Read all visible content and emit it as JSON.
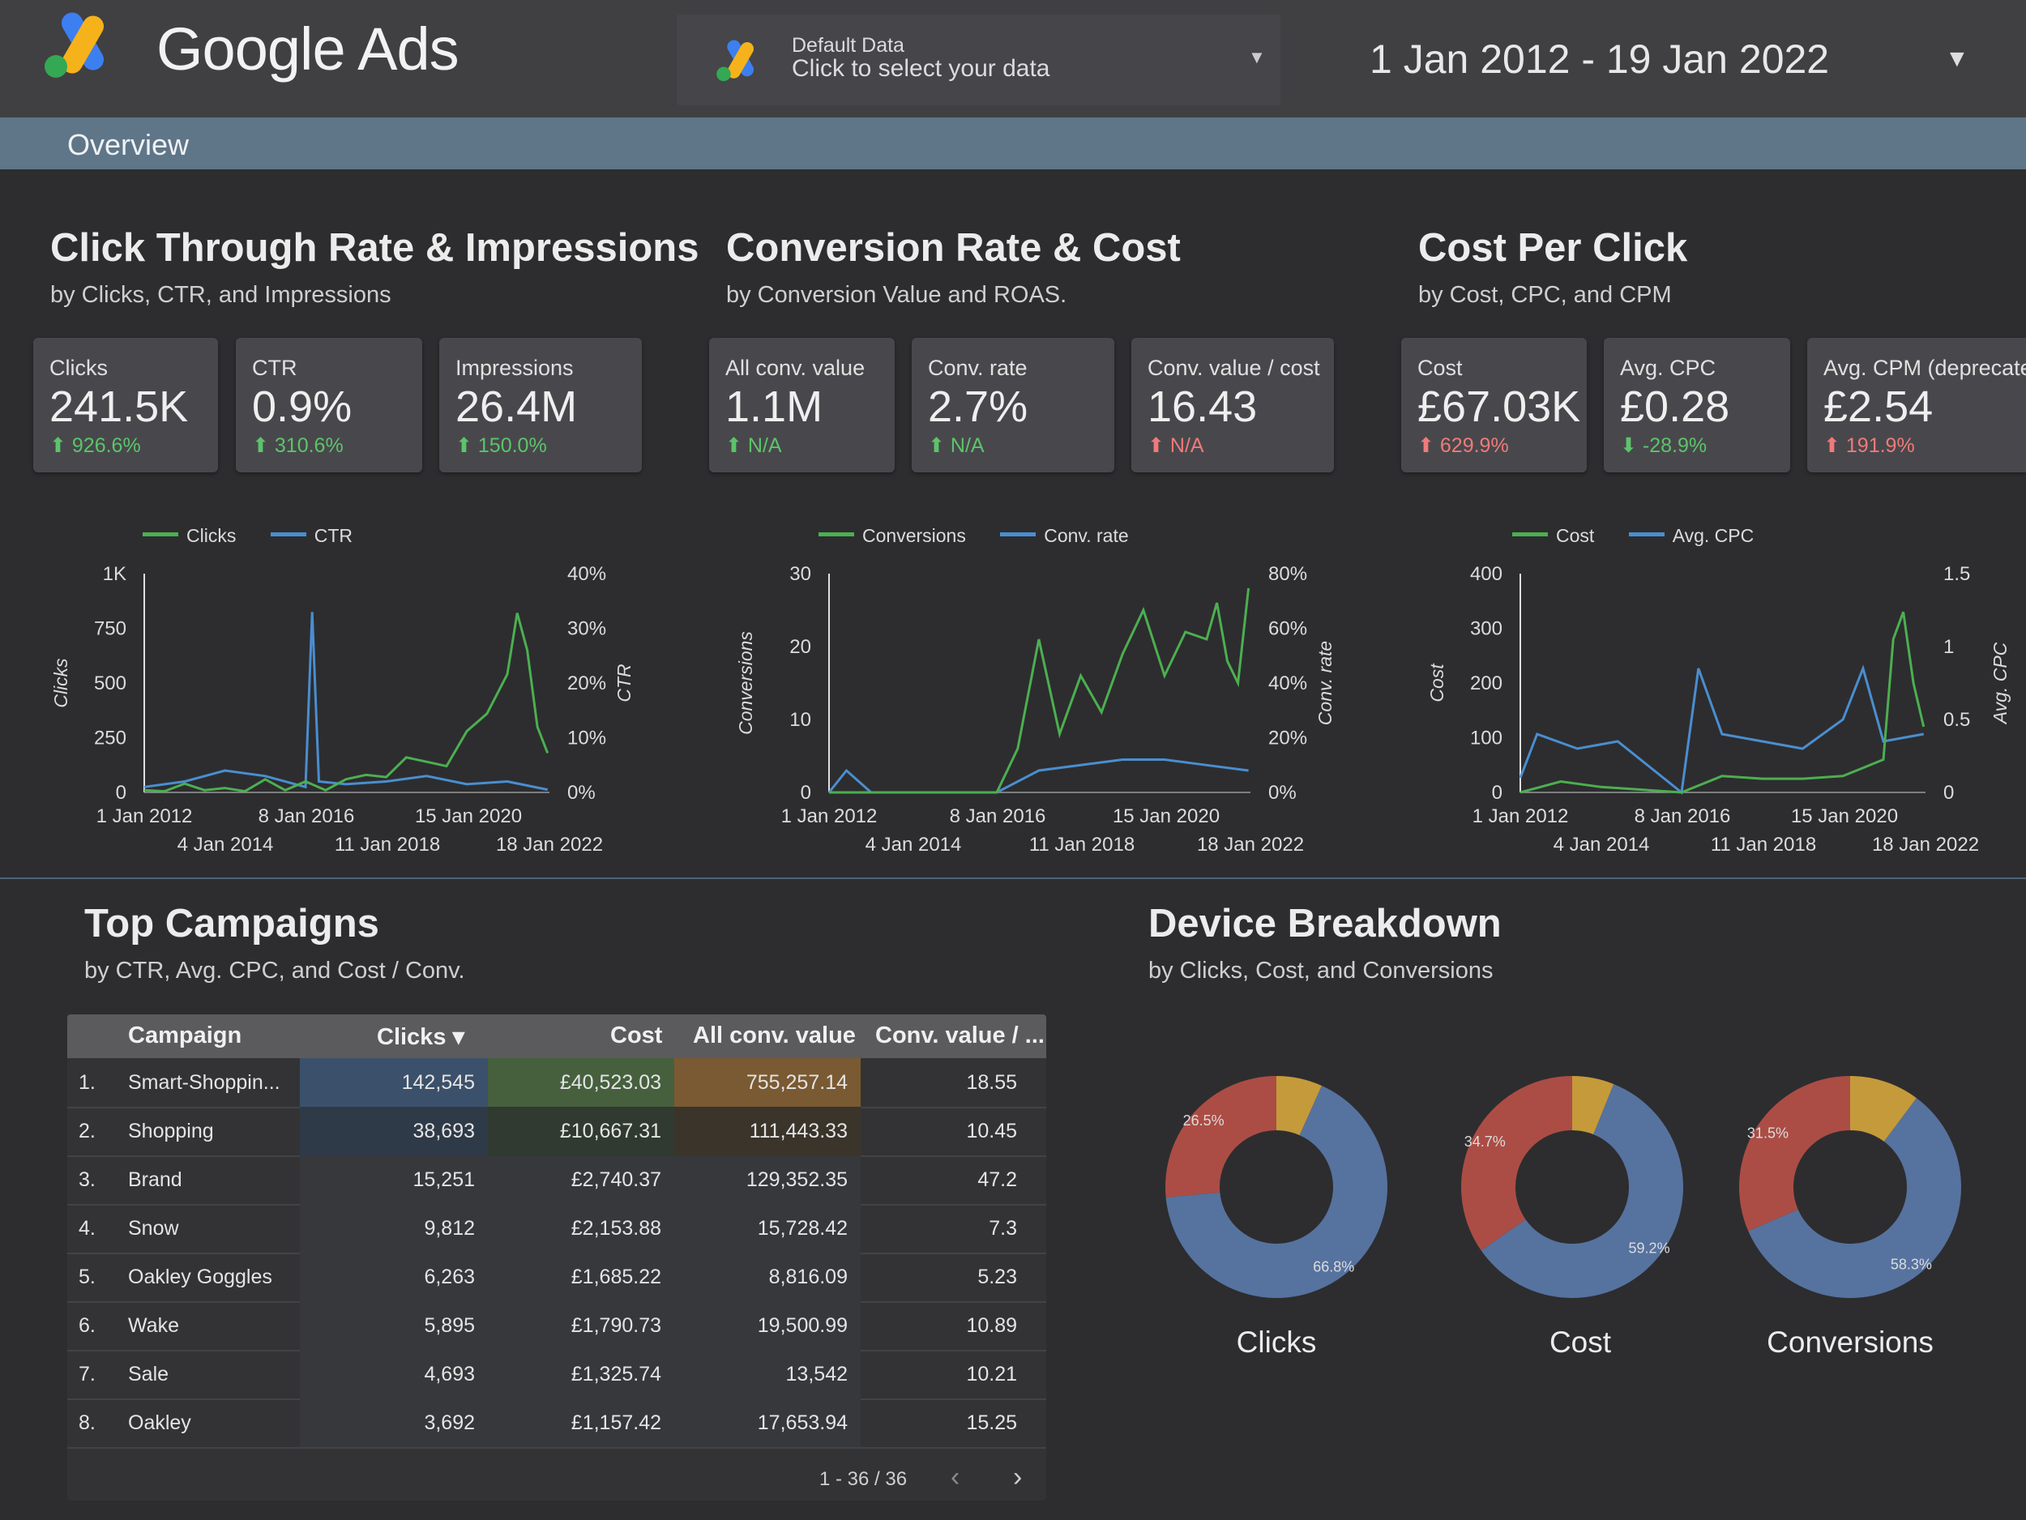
{
  "header": {
    "brand": "Google Ads",
    "data_selector": {
      "line1": "Default Data",
      "line2": "Click to select your data"
    },
    "date_range": "1 Jan 2012 - 19 Jan 2022"
  },
  "tabs": {
    "overview": "Overview"
  },
  "colors": {
    "green": "#4caf50",
    "blue": "#4a8ed0",
    "gold": "#c59a3a",
    "red": "#ab4d45",
    "slate": "#56729f"
  },
  "sections": {
    "ctr": {
      "title": "Click Through Rate & Impressions",
      "subtitle": "by Clicks, CTR, and Impressions",
      "kpis": [
        {
          "label": "Clicks",
          "value": "241.5K",
          "change": "⬆ 926.6%"
        },
        {
          "label": "CTR",
          "value": "0.9%",
          "change": "⬆ 310.6%"
        },
        {
          "label": "Impressions",
          "value": "26.4M",
          "change": "⬆ 150.0%"
        }
      ]
    },
    "conv": {
      "title": "Conversion Rate & Cost",
      "subtitle": "by Conversion Value and ROAS.",
      "kpis": [
        {
          "label": "All conv. value",
          "value": "1.1M",
          "change": "⬆ N/A"
        },
        {
          "label": "Conv. rate",
          "value": "2.7%",
          "change": "⬆ N/A"
        },
        {
          "label": "Conv. value / cost",
          "value": "16.43",
          "change": "⬆ N/A"
        }
      ]
    },
    "cpc": {
      "title": "Cost Per Click",
      "subtitle": "by Cost, CPC, and CPM",
      "kpis": [
        {
          "label": "Cost",
          "value": "£67.03K",
          "change": "⬆ 629.9%"
        },
        {
          "label": "Avg. CPC",
          "value": "£0.28",
          "change": "⬇ -28.9%"
        },
        {
          "label": "Avg. CPM (deprecated)",
          "value": "£2.54",
          "change": "⬆ 191.9%"
        }
      ]
    },
    "campaigns": {
      "title": "Top Campaigns",
      "subtitle": "by CTR, Avg. CPC, and Cost / Conv."
    },
    "devices": {
      "title": "Device Breakdown",
      "subtitle": "by Clicks, Cost, and Conversions"
    }
  },
  "chart_data": [
    {
      "type": "line",
      "series": [
        {
          "name": "Clicks",
          "axis": "left",
          "x": [
            "2012-01-01",
            "2012-07-01",
            "2013-01-01",
            "2013-07-01",
            "2014-01-01",
            "2014-07-01",
            "2015-01-01",
            "2015-07-01",
            "2016-01-01",
            "2016-07-01",
            "2017-01-01",
            "2017-07-01",
            "2018-01-01",
            "2018-07-01",
            "2019-01-01",
            "2019-07-01",
            "2020-01-01",
            "2020-07-01",
            "2021-01-01",
            "2021-04-01",
            "2021-07-01",
            "2021-10-01",
            "2022-01-01"
          ],
          "values": [
            10,
            5,
            40,
            10,
            20,
            5,
            60,
            10,
            50,
            10,
            60,
            80,
            70,
            160,
            140,
            120,
            280,
            360,
            540,
            820,
            650,
            300,
            180
          ]
        },
        {
          "name": "CTR",
          "axis": "right",
          "x": [
            "2012-01-01",
            "2013-01-01",
            "2014-01-01",
            "2015-01-01",
            "2016-01-01",
            "2016-03-01",
            "2016-05-01",
            "2017-01-01",
            "2018-01-01",
            "2019-01-01",
            "2020-01-01",
            "2021-01-01",
            "2022-01-01"
          ],
          "values": [
            1,
            2,
            4,
            3,
            1,
            33,
            2,
            1.5,
            2,
            3,
            1.5,
            2,
            0.5
          ]
        }
      ],
      "xlim": [
        "2012-01-01",
        "2022-01-18"
      ],
      "ylim_left": [
        0,
        1000
      ],
      "ylim_right": [
        0,
        40
      ],
      "yticks_left": [
        "0",
        "250",
        "500",
        "750",
        "1K"
      ],
      "yticks_right": [
        "0%",
        "10%",
        "20%",
        "30%",
        "40%"
      ],
      "xticks_top": [
        "1 Jan 2012",
        "8 Jan 2016",
        "15 Jan 2020"
      ],
      "xticks_bottom": [
        "4 Jan 2014",
        "11 Jan 2018",
        "18 Jan 2022"
      ],
      "ylabel_left": "Clicks",
      "ylabel_right": "CTR"
    },
    {
      "type": "line",
      "series": [
        {
          "name": "Conversions",
          "axis": "left",
          "x": [
            "2012-01-01",
            "2014-01-01",
            "2016-01-01",
            "2016-07-01",
            "2017-01-01",
            "2017-07-01",
            "2018-01-01",
            "2018-07-01",
            "2019-01-01",
            "2019-07-01",
            "2020-01-01",
            "2020-07-01",
            "2021-01-01",
            "2021-04-01",
            "2021-07-01",
            "2021-10-01",
            "2022-01-01"
          ],
          "values": [
            0,
            0,
            0,
            6,
            21,
            8,
            16,
            11,
            19,
            25,
            16,
            22,
            21,
            26,
            18,
            15,
            28
          ]
        },
        {
          "name": "Conv. rate",
          "axis": "right",
          "x": [
            "2012-01-01",
            "2012-06-01",
            "2013-01-01",
            "2016-01-01",
            "2017-01-01",
            "2018-01-01",
            "2019-01-01",
            "2020-01-01",
            "2021-01-01",
            "2022-01-01"
          ],
          "values": [
            0,
            8,
            0,
            0,
            8,
            10,
            12,
            12,
            10,
            8
          ]
        }
      ],
      "xlim": [
        "2012-01-01",
        "2022-01-18"
      ],
      "ylim_left": [
        0,
        30
      ],
      "ylim_right": [
        0,
        80
      ],
      "yticks_left": [
        "0",
        "10",
        "20",
        "30"
      ],
      "yticks_right": [
        "0%",
        "20%",
        "40%",
        "60%",
        "80%"
      ],
      "xticks_top": [
        "1 Jan 2012",
        "8 Jan 2016",
        "15 Jan 2020"
      ],
      "xticks_bottom": [
        "4 Jan 2014",
        "11 Jan 2018",
        "18 Jan 2022"
      ],
      "ylabel_left": "Conversions",
      "ylabel_right": "Conv. rate"
    },
    {
      "type": "line",
      "series": [
        {
          "name": "Cost",
          "axis": "left",
          "x": [
            "2012-01-01",
            "2013-01-01",
            "2014-01-01",
            "2016-01-01",
            "2017-01-01",
            "2018-01-01",
            "2019-01-01",
            "2020-01-01",
            "2021-01-01",
            "2021-04-01",
            "2021-07-01",
            "2021-10-01",
            "2022-01-01"
          ],
          "values": [
            0,
            20,
            10,
            0,
            30,
            25,
            25,
            30,
            60,
            280,
            330,
            200,
            120
          ]
        },
        {
          "name": "Avg. CPC",
          "axis": "right",
          "x": [
            "2012-01-01",
            "2012-06-01",
            "2013-06-01",
            "2014-06-01",
            "2016-01-01",
            "2016-06-01",
            "2017-01-01",
            "2018-01-01",
            "2019-01-01",
            "2020-01-01",
            "2020-07-01",
            "2021-01-01",
            "2022-01-01"
          ],
          "values": [
            0.1,
            0.4,
            0.3,
            0.35,
            0,
            0.85,
            0.4,
            0.35,
            0.3,
            0.5,
            0.85,
            0.35,
            0.4
          ]
        }
      ],
      "xlim": [
        "2012-01-01",
        "2022-01-18"
      ],
      "ylim_left": [
        0,
        400
      ],
      "ylim_right": [
        0,
        1.5
      ],
      "yticks_left": [
        "0",
        "100",
        "200",
        "300",
        "400"
      ],
      "yticks_right": [
        "0",
        "0.5",
        "1",
        "1.5"
      ],
      "xticks_top": [
        "1 Jan 2012",
        "8 Jan 2016",
        "15 Jan 2020"
      ],
      "xticks_bottom": [
        "4 Jan 2014",
        "11 Jan 2018",
        "18 Jan 2022"
      ],
      "ylabel_left": "Cost",
      "ylabel_right": "Avg. CPC"
    },
    {
      "type": "pie",
      "label": "Clicks",
      "slices": [
        {
          "value": 6.7
        },
        {
          "value": 66.8,
          "label": "66.8%"
        },
        {
          "value": 26.5,
          "label": "26.5%"
        }
      ]
    },
    {
      "type": "pie",
      "label": "Cost",
      "slices": [
        {
          "value": 6.1
        },
        {
          "value": 59.2,
          "label": "59.2%"
        },
        {
          "value": 34.7,
          "label": "34.7%"
        }
      ]
    },
    {
      "type": "pie",
      "label": "Conversions",
      "slices": [
        {
          "value": 10.2
        },
        {
          "value": 58.3,
          "label": "58.3%"
        },
        {
          "value": 31.5,
          "label": "31.5%"
        }
      ]
    },
    {
      "type": "table",
      "columns": [
        "Campaign",
        "Clicks ▾",
        "Cost",
        "All conv. value",
        "Conv. value / ..."
      ],
      "rows": [
        [
          "1.",
          "Smart-Shoppin...",
          "142,545",
          "£40,523.03",
          "755,257.14",
          "18.55"
        ],
        [
          "2.",
          "Shopping",
          "38,693",
          "£10,667.31",
          "111,443.33",
          "10.45"
        ],
        [
          "3.",
          "Brand",
          "15,251",
          "£2,740.37",
          "129,352.35",
          "47.2"
        ],
        [
          "4.",
          "Snow",
          "9,812",
          "£2,153.88",
          "15,728.42",
          "7.3"
        ],
        [
          "5.",
          "Oakley Goggles",
          "6,263",
          "£1,685.22",
          "8,816.09",
          "5.23"
        ],
        [
          "6.",
          "Wake",
          "5,895",
          "£1,790.73",
          "19,500.99",
          "10.89"
        ],
        [
          "7.",
          "Sale",
          "4,693",
          "£1,325.74",
          "13,542",
          "10.21"
        ],
        [
          "8.",
          "Oakley",
          "3,692",
          "£1,157.42",
          "17,653.94",
          "15.25"
        ]
      ],
      "pager": "1 - 36 / 36"
    }
  ]
}
